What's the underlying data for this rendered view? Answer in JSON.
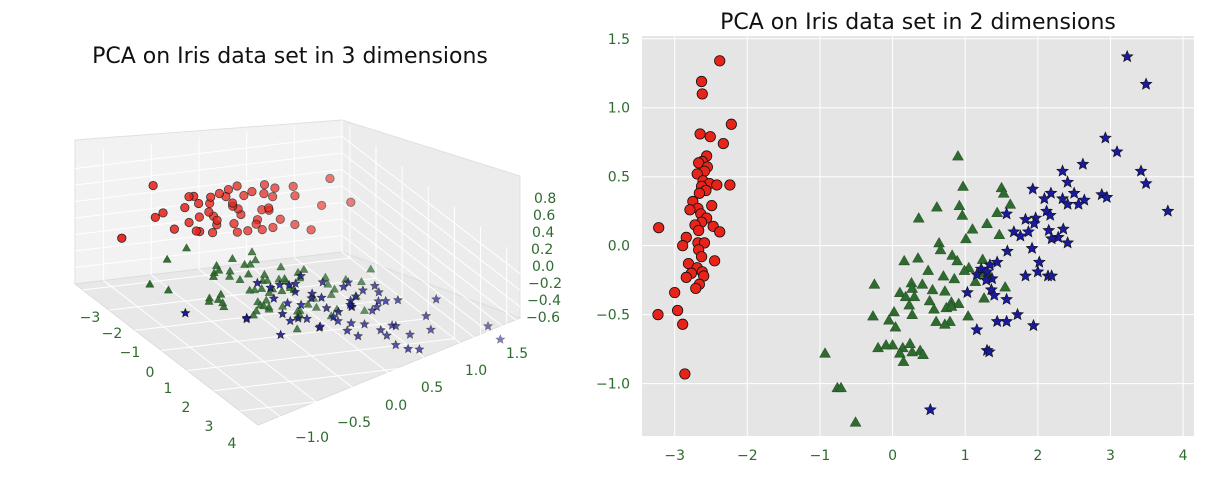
{
  "chart_data": [
    {
      "type": "scatter",
      "subtype": "3d",
      "title": "PCA on Iris data set in 3 dimensions",
      "axis_label_color": "#2f6b2f",
      "x_ticks": [
        "−3",
        "−2",
        "−1",
        "0",
        "1",
        "2",
        "3",
        "4"
      ],
      "y_ticks": [
        "−1.0",
        "−0.5",
        "0.0",
        "0.5",
        "1.0",
        "1.5"
      ],
      "z_ticks": [
        "0.8",
        "0.6",
        "0.4",
        "0.2",
        "0.0",
        "−0.2",
        "−0.4",
        "−0.6"
      ],
      "series": [
        {
          "marker": "circle",
          "color": "#e8231a"
        },
        {
          "marker": "triangle",
          "color": "#2e6b2e"
        },
        {
          "marker": "star",
          "color": "#1a1a9c"
        }
      ]
    },
    {
      "type": "scatter",
      "title": "PCA on Iris data set in 2 dimensions",
      "xlim": [
        -3.45,
        4.15
      ],
      "ylim": [
        -1.38,
        1.52
      ],
      "x_ticks": [
        {
          "value": -3,
          "label": "−3"
        },
        {
          "value": -2,
          "label": "−2"
        },
        {
          "value": -1,
          "label": "−1"
        },
        {
          "value": 0,
          "label": "0"
        },
        {
          "value": 1,
          "label": "1"
        },
        {
          "value": 2,
          "label": "2"
        },
        {
          "value": 3,
          "label": "3"
        },
        {
          "value": 4,
          "label": "4"
        }
      ],
      "y_ticks": [
        {
          "value": 1.5,
          "label": "1.5"
        },
        {
          "value": 1.0,
          "label": "1.0"
        },
        {
          "value": 0.5,
          "label": "0.5"
        },
        {
          "value": 0.0,
          "label": "0.0"
        },
        {
          "value": -0.5,
          "label": "−0.5"
        },
        {
          "value": -1.0,
          "label": "−1.0"
        }
      ],
      "grid": true,
      "background": "#e5e5e5",
      "tick_label_color": "#2f6b2f",
      "series": [
        {
          "marker": "circle",
          "color": "#e8231a",
          "points": [
            [
              -2.38,
              1.34
            ],
            [
              -2.63,
              1.19
            ],
            [
              -2.62,
              1.1
            ],
            [
              -2.22,
              0.88
            ],
            [
              -2.51,
              0.79
            ],
            [
              -2.65,
              0.81
            ],
            [
              -2.33,
              0.74
            ],
            [
              -2.56,
              0.65
            ],
            [
              -2.62,
              0.61
            ],
            [
              -2.67,
              0.6
            ],
            [
              -2.55,
              0.57
            ],
            [
              -2.59,
              0.54
            ],
            [
              -2.69,
              0.52
            ],
            [
              -2.61,
              0.47
            ],
            [
              -2.52,
              0.45
            ],
            [
              -2.24,
              0.44
            ],
            [
              -2.42,
              0.44
            ],
            [
              -2.63,
              0.43
            ],
            [
              -2.57,
              0.4
            ],
            [
              -2.66,
              0.38
            ],
            [
              -2.75,
              0.32
            ],
            [
              -2.49,
              0.29
            ],
            [
              -2.68,
              0.27
            ],
            [
              -2.79,
              0.26
            ],
            [
              -2.64,
              0.23
            ],
            [
              -2.56,
              0.2
            ],
            [
              -2.63,
              0.17
            ],
            [
              -2.72,
              0.15
            ],
            [
              -2.47,
              0.14
            ],
            [
              -3.22,
              0.13
            ],
            [
              -2.67,
              0.11
            ],
            [
              -2.38,
              0.1
            ],
            [
              -2.84,
              0.06
            ],
            [
              -2.68,
              0.02
            ],
            [
              -2.59,
              0.02
            ],
            [
              -2.89,
              0.0
            ],
            [
              -2.67,
              -0.03
            ],
            [
              -2.63,
              -0.08
            ],
            [
              -2.45,
              -0.11
            ],
            [
              -2.81,
              -0.13
            ],
            [
              -2.69,
              -0.16
            ],
            [
              -2.62,
              -0.19
            ],
            [
              -2.77,
              -0.2
            ],
            [
              -2.6,
              -0.22
            ],
            [
              -2.84,
              -0.23
            ],
            [
              -2.66,
              -0.28
            ],
            [
              -2.71,
              -0.31
            ],
            [
              -3.0,
              -0.34
            ],
            [
              -2.96,
              -0.47
            ],
            [
              -3.23,
              -0.5
            ],
            [
              -2.89,
              -0.57
            ],
            [
              -2.86,
              -0.93
            ]
          ]
        },
        {
          "marker": "triangle",
          "color": "#2e6b2e",
          "points": [
            [
              0.9,
              0.65
            ],
            [
              0.97,
              0.43
            ],
            [
              1.5,
              0.42
            ],
            [
              1.53,
              0.38
            ],
            [
              1.62,
              0.3
            ],
            [
              0.92,
              0.29
            ],
            [
              0.61,
              0.28
            ],
            [
              1.44,
              0.24
            ],
            [
              0.96,
              0.22
            ],
            [
              0.36,
              0.2
            ],
            [
              1.3,
              0.16
            ],
            [
              1.1,
              0.12
            ],
            [
              1.47,
              0.08
            ],
            [
              1.01,
              0.05
            ],
            [
              0.64,
              0.02
            ],
            [
              0.66,
              -0.03
            ],
            [
              0.82,
              -0.07
            ],
            [
              1.24,
              -0.1
            ],
            [
              0.89,
              -0.11
            ],
            [
              0.16,
              -0.11
            ],
            [
              1.05,
              -0.16
            ],
            [
              0.99,
              -0.18
            ],
            [
              0.49,
              -0.18
            ],
            [
              1.2,
              -0.2
            ],
            [
              0.7,
              -0.22
            ],
            [
              0.85,
              -0.24
            ],
            [
              1.14,
              -0.26
            ],
            [
              0.26,
              -0.27
            ],
            [
              0.41,
              -0.28
            ],
            [
              -0.25,
              -0.28
            ],
            [
              0.27,
              -0.31
            ],
            [
              0.55,
              -0.32
            ],
            [
              0.72,
              -0.33
            ],
            [
              0.1,
              -0.34
            ],
            [
              0.18,
              -0.37
            ],
            [
              0.3,
              -0.37
            ],
            [
              1.26,
              -0.38
            ],
            [
              0.81,
              -0.41
            ],
            [
              0.51,
              -0.4
            ],
            [
              0.91,
              -0.42
            ],
            [
              0.23,
              -0.43
            ],
            [
              0.74,
              -0.45
            ],
            [
              0.57,
              -0.46
            ],
            [
              0.02,
              -0.48
            ],
            [
              0.27,
              -0.5
            ],
            [
              1.04,
              -0.51
            ],
            [
              0.79,
              -0.55
            ],
            [
              0.04,
              -0.59
            ],
            [
              0.0,
              -0.72
            ],
            [
              0.14,
              -0.74
            ],
            [
              0.38,
              -0.76
            ],
            [
              0.27,
              -0.77
            ],
            [
              0.1,
              -0.78
            ],
            [
              -0.2,
              -0.74
            ],
            [
              0.42,
              -0.79
            ],
            [
              0.81,
              -0.44
            ],
            [
              -0.27,
              -0.51
            ],
            [
              0.24,
              -0.71
            ],
            [
              -0.09,
              -0.72
            ],
            [
              0.6,
              -0.55
            ],
            [
              1.33,
              -0.21
            ],
            [
              0.15,
              -0.84
            ],
            [
              -0.93,
              -0.78
            ],
            [
              -0.76,
              -1.03
            ],
            [
              -0.71,
              -1.03
            ],
            [
              -0.51,
              -1.28
            ],
            [
              -0.05,
              -0.54
            ],
            [
              0.35,
              -0.09
            ],
            [
              1.55,
              -0.3
            ],
            [
              0.72,
              -0.57
            ]
          ]
        },
        {
          "marker": "star",
          "color": "#1a1a9c",
          "points": [
            [
              3.23,
              1.37
            ],
            [
              3.49,
              1.17
            ],
            [
              2.93,
              0.78
            ],
            [
              3.09,
              0.68
            ],
            [
              2.62,
              0.59
            ],
            [
              2.34,
              0.54
            ],
            [
              3.42,
              0.54
            ],
            [
              3.49,
              0.45
            ],
            [
              2.41,
              0.46
            ],
            [
              1.93,
              0.41
            ],
            [
              2.18,
              0.38
            ],
            [
              2.5,
              0.38
            ],
            [
              2.09,
              0.34
            ],
            [
              2.34,
              0.34
            ],
            [
              2.88,
              0.37
            ],
            [
              2.95,
              0.35
            ],
            [
              2.41,
              0.3
            ],
            [
              2.64,
              0.33
            ],
            [
              2.56,
              0.3
            ],
            [
              2.12,
              0.25
            ],
            [
              1.57,
              0.23
            ],
            [
              1.97,
              0.2
            ],
            [
              1.83,
              0.19
            ],
            [
              3.79,
              0.25
            ],
            [
              2.17,
              0.22
            ],
            [
              1.95,
              0.16
            ],
            [
              2.35,
              0.12
            ],
            [
              2.15,
              0.11
            ],
            [
              1.87,
              0.1
            ],
            [
              1.67,
              0.1
            ],
            [
              1.76,
              0.07
            ],
            [
              2.28,
              0.06
            ],
            [
              2.41,
              0.02
            ],
            [
              2.19,
              0.05
            ],
            [
              1.92,
              -0.02
            ],
            [
              1.58,
              -0.04
            ],
            [
              2.02,
              -0.12
            ],
            [
              1.34,
              -0.14
            ],
            [
              1.44,
              -0.12
            ],
            [
              1.22,
              -0.17
            ],
            [
              1.3,
              -0.19
            ],
            [
              1.37,
              -0.24
            ],
            [
              1.16,
              -0.21
            ],
            [
              1.83,
              -0.22
            ],
            [
              2.0,
              -0.19
            ],
            [
              2.14,
              -0.22
            ],
            [
              2.19,
              -0.22
            ],
            [
              1.29,
              -0.25
            ],
            [
              1.36,
              -0.32
            ],
            [
              1.4,
              -0.36
            ],
            [
              1.57,
              -0.39
            ],
            [
              1.72,
              -0.5
            ],
            [
              1.94,
              -0.58
            ],
            [
              1.57,
              -0.55
            ],
            [
              1.44,
              -0.55
            ],
            [
              1.3,
              -0.76
            ],
            [
              1.33,
              -0.77
            ],
            [
              1.16,
              -0.61
            ],
            [
              1.03,
              -0.34
            ],
            [
              0.52,
              -1.19
            ]
          ]
        }
      ]
    }
  ]
}
